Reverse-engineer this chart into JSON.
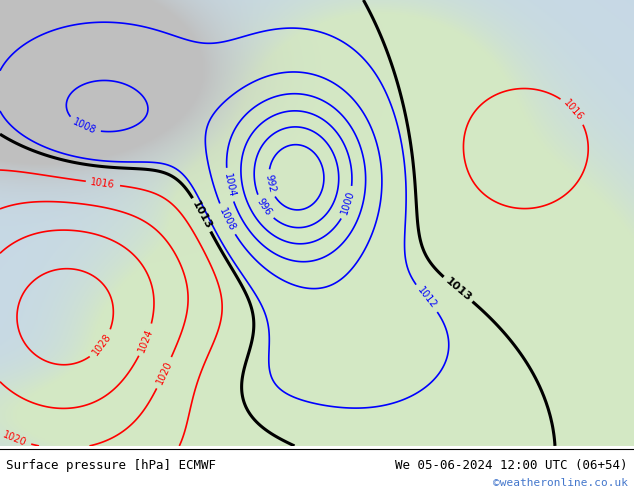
{
  "title_left": "Surface pressure [hPa] ECMWF",
  "title_right": "We 05-06-2024 12:00 UTC (06+54)",
  "copyright": "©weatheronline.co.uk",
  "ocean_color": [
    0.78,
    0.85,
    0.9
  ],
  "land_color": [
    0.83,
    0.91,
    0.77
  ],
  "gray_color": [
    0.75,
    0.75,
    0.75
  ],
  "footer_text_color": "#000000",
  "copyright_color": "#4477cc",
  "figsize": [
    6.34,
    4.9
  ],
  "dpi": 100
}
